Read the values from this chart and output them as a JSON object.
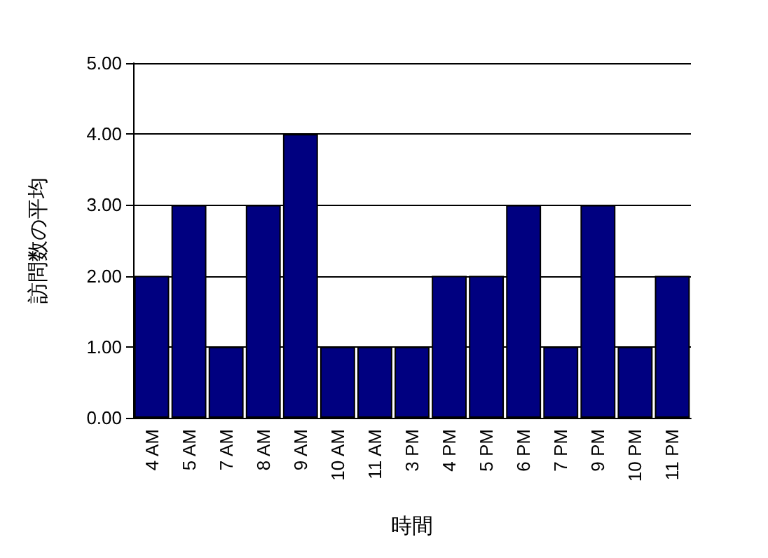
{
  "chart_data": {
    "type": "bar",
    "xlabel": "時間",
    "ylabel": "訪問数の平均",
    "categories": [
      "4 AM",
      "5 AM",
      "7 AM",
      "8 AM",
      "9 AM",
      "10 AM",
      "11 AM",
      "3 PM",
      "4 PM",
      "5 PM",
      "6 PM",
      "7 PM",
      "9 PM",
      "10 PM",
      "11 PM"
    ],
    "values": [
      2,
      3,
      1,
      3,
      4,
      1,
      1,
      1,
      2,
      2,
      3,
      1,
      3,
      1,
      2
    ],
    "color": "#000080",
    "ylim": [
      0,
      5
    ],
    "yticks": [
      {
        "value": 0,
        "label": "0.00"
      },
      {
        "value": 1,
        "label": "1.00"
      },
      {
        "value": 2,
        "label": "2.00"
      },
      {
        "value": 3,
        "label": "3.00"
      },
      {
        "value": 4,
        "label": "4.00"
      },
      {
        "value": 5,
        "label": "5.00"
      }
    ],
    "grid": "y"
  }
}
